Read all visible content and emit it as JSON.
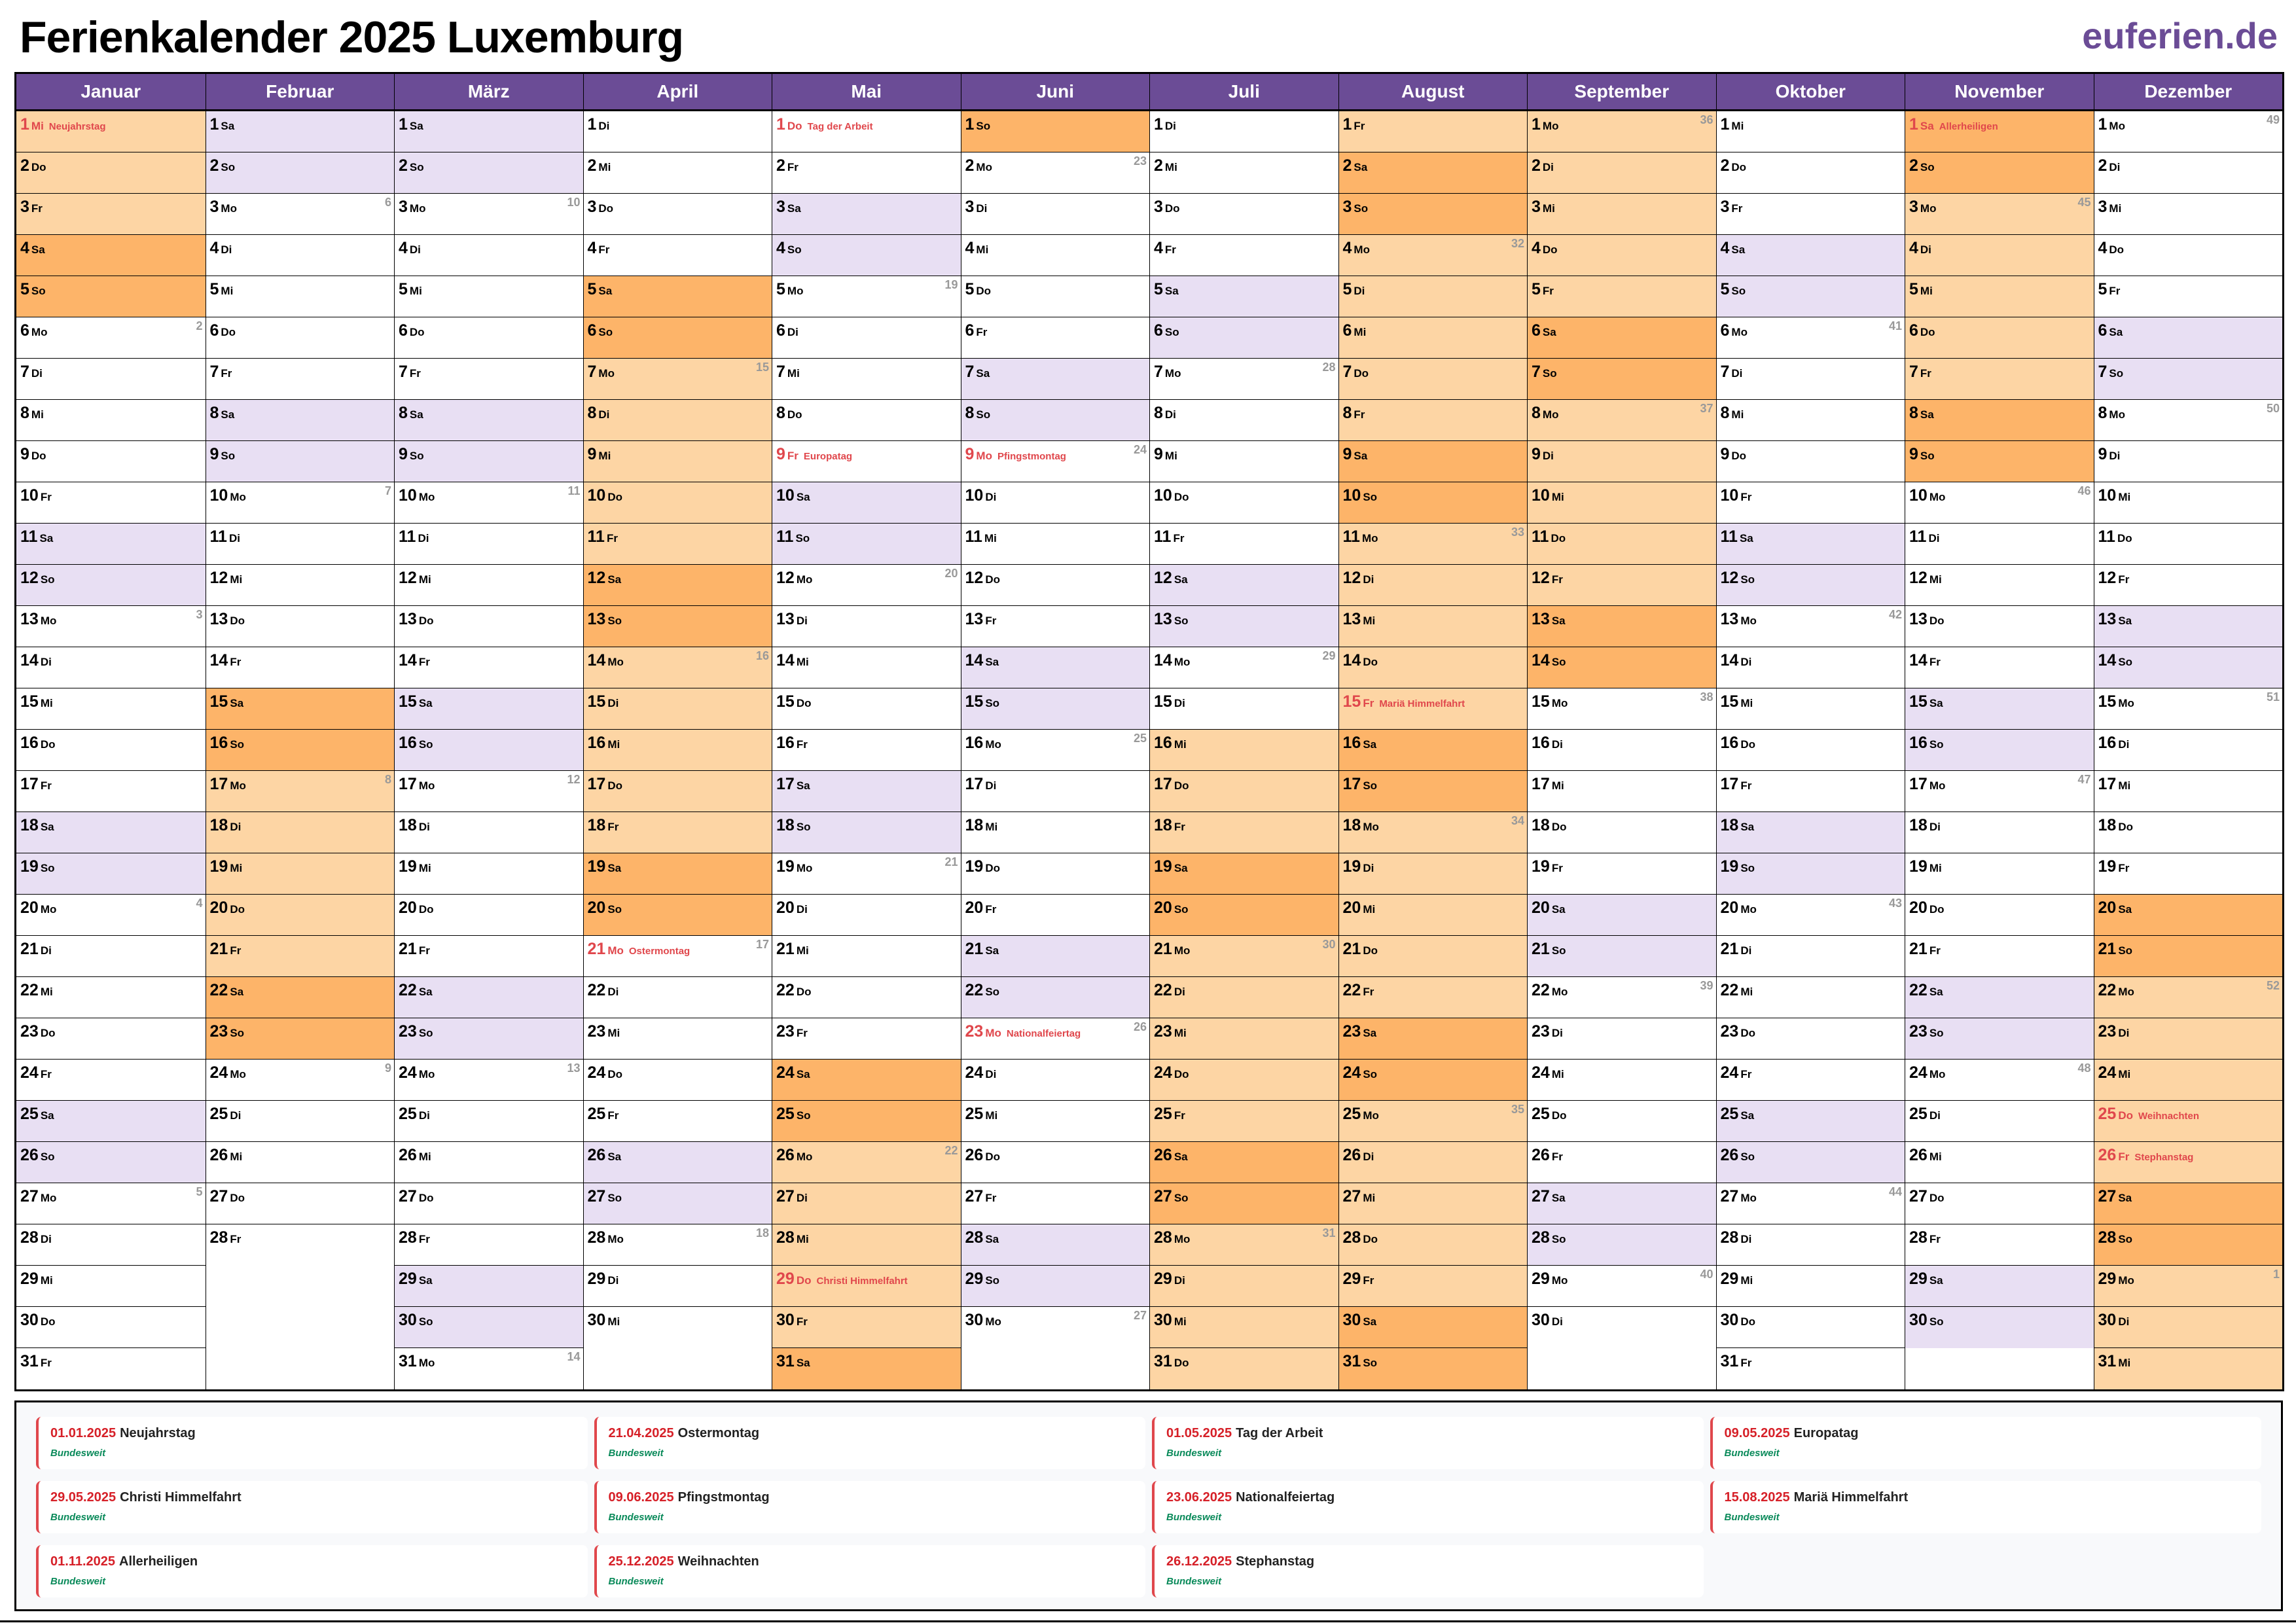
{
  "title": "Ferienkalender 2025 Luxemburg",
  "logo": "euferien.de",
  "colors": {
    "header": "#6b4c96",
    "weekend": "#e8dff3",
    "ferien": "#fdd5a4",
    "ferien_weekend": "#fdb469",
    "holiday": "#e0474c"
  },
  "months": [
    {
      "name": "Januar",
      "wd": [
        "Mi",
        "Do",
        "Fr",
        "Sa",
        "So",
        "Mo",
        "Di",
        "Mi",
        "Do",
        "Fr",
        "Sa",
        "So",
        "Mo",
        "Di",
        "Mi",
        "Do",
        "Fr",
        "Sa",
        "So",
        "Mo",
        "Di",
        "Mi",
        "Do",
        "Fr",
        "Sa",
        "So",
        "Mo",
        "Di",
        "Mi",
        "Do",
        "Fr"
      ],
      "ferien": [
        [
          1,
          5
        ]
      ],
      "kw": {
        "6": "2",
        "13": "3",
        "20": "4",
        "27": "5"
      },
      "holidays": {
        "1": "Neujahrstag"
      }
    },
    {
      "name": "Februar",
      "wd": [
        "Sa",
        "So",
        "Mo",
        "Di",
        "Mi",
        "Do",
        "Fr",
        "Sa",
        "So",
        "Mo",
        "Di",
        "Mi",
        "Do",
        "Fr",
        "Sa",
        "So",
        "Mo",
        "Di",
        "Mi",
        "Do",
        "Fr",
        "Sa",
        "So",
        "Mo",
        "Di",
        "Mi",
        "Do",
        "Fr"
      ],
      "ferien": [
        [
          15,
          23
        ]
      ],
      "kw": {
        "3": "6",
        "10": "7",
        "17": "8",
        "24": "9"
      },
      "holidays": {}
    },
    {
      "name": "März",
      "wd": [
        "Sa",
        "So",
        "Mo",
        "Di",
        "Mi",
        "Do",
        "Fr",
        "Sa",
        "So",
        "Mo",
        "Di",
        "Mi",
        "Do",
        "Fr",
        "Sa",
        "So",
        "Mo",
        "Di",
        "Mi",
        "Do",
        "Fr",
        "Sa",
        "So",
        "Mo",
        "Di",
        "Mi",
        "Do",
        "Fr",
        "Sa",
        "So",
        "Mo"
      ],
      "ferien": [],
      "kw": {
        "3": "10",
        "10": "11",
        "17": "12",
        "24": "13",
        "31": "14"
      },
      "holidays": {}
    },
    {
      "name": "April",
      "wd": [
        "Di",
        "Mi",
        "Do",
        "Fr",
        "Sa",
        "So",
        "Mo",
        "Di",
        "Mi",
        "Do",
        "Fr",
        "Sa",
        "So",
        "Mo",
        "Di",
        "Mi",
        "Do",
        "Fr",
        "Sa",
        "So",
        "Mo",
        "Di",
        "Mi",
        "Do",
        "Fr",
        "Sa",
        "So",
        "Mo",
        "Di",
        "Mi"
      ],
      "ferien": [
        [
          5,
          20
        ]
      ],
      "kw": {
        "7": "15",
        "14": "16",
        "21": "17",
        "28": "18"
      },
      "holidays": {
        "21": "Ostermontag"
      }
    },
    {
      "name": "Mai",
      "wd": [
        "Do",
        "Fr",
        "Sa",
        "So",
        "Mo",
        "Di",
        "Mi",
        "Do",
        "Fr",
        "Sa",
        "So",
        "Mo",
        "Di",
        "Mi",
        "Do",
        "Fr",
        "Sa",
        "So",
        "Mo",
        "Di",
        "Mi",
        "Do",
        "Fr",
        "Sa",
        "So",
        "Mo",
        "Di",
        "Mi",
        "Do",
        "Fr",
        "Sa"
      ],
      "ferien": [
        [
          24,
          31
        ]
      ],
      "kw": {
        "5": "19",
        "12": "20",
        "19": "21",
        "26": "22"
      },
      "holidays": {
        "1": "Tag der Arbeit",
        "9": "Europatag",
        "29": "Christi Himmelfahrt"
      }
    },
    {
      "name": "Juni",
      "wd": [
        "So",
        "Mo",
        "Di",
        "Mi",
        "Do",
        "Fr",
        "Sa",
        "So",
        "Mo",
        "Di",
        "Mi",
        "Do",
        "Fr",
        "Sa",
        "So",
        "Mo",
        "Di",
        "Mi",
        "Do",
        "Fr",
        "Sa",
        "So",
        "Mo",
        "Di",
        "Mi",
        "Do",
        "Fr",
        "Sa",
        "So",
        "Mo"
      ],
      "ferien": [
        [
          1,
          1
        ]
      ],
      "kw": {
        "2": "23",
        "9": "24",
        "16": "25",
        "23": "26",
        "30": "27"
      },
      "holidays": {
        "9": "Pfingstmontag",
        "23": "Nationalfeiertag"
      }
    },
    {
      "name": "Juli",
      "wd": [
        "Di",
        "Mi",
        "Do",
        "Fr",
        "Sa",
        "So",
        "Mo",
        "Di",
        "Mi",
        "Do",
        "Fr",
        "Sa",
        "So",
        "Mo",
        "Di",
        "Mi",
        "Do",
        "Fr",
        "Sa",
        "So",
        "Mo",
        "Di",
        "Mi",
        "Do",
        "Fr",
        "Sa",
        "So",
        "Mo",
        "Di",
        "Mi",
        "Do"
      ],
      "ferien": [
        [
          16,
          31
        ]
      ],
      "kw": {
        "7": "28",
        "14": "29",
        "21": "30",
        "28": "31"
      },
      "holidays": {}
    },
    {
      "name": "August",
      "wd": [
        "Fr",
        "Sa",
        "So",
        "Mo",
        "Di",
        "Mi",
        "Do",
        "Fr",
        "Sa",
        "So",
        "Mo",
        "Di",
        "Mi",
        "Do",
        "Fr",
        "Sa",
        "So",
        "Mo",
        "Di",
        "Mi",
        "Do",
        "Fr",
        "Sa",
        "So",
        "Mo",
        "Di",
        "Mi",
        "Do",
        "Fr",
        "Sa",
        "So"
      ],
      "ferien": [
        [
          1,
          31
        ]
      ],
      "kw": {
        "4": "32",
        "11": "33",
        "18": "34",
        "25": "35"
      },
      "holidays": {
        "15": "Mariä Himmelfahrt"
      }
    },
    {
      "name": "September",
      "wd": [
        "Mo",
        "Di",
        "Mi",
        "Do",
        "Fr",
        "Sa",
        "So",
        "Mo",
        "Di",
        "Mi",
        "Do",
        "Fr",
        "Sa",
        "So",
        "Mo",
        "Di",
        "Mi",
        "Do",
        "Fr",
        "Sa",
        "So",
        "Mo",
        "Di",
        "Mi",
        "Do",
        "Fr",
        "Sa",
        "So",
        "Mo",
        "Di"
      ],
      "ferien": [
        [
          1,
          14
        ]
      ],
      "kw": {
        "1": "36",
        "8": "37",
        "15": "38",
        "22": "39",
        "29": "40"
      },
      "holidays": {}
    },
    {
      "name": "Oktober",
      "wd": [
        "Mi",
        "Do",
        "Fr",
        "Sa",
        "So",
        "Mo",
        "Di",
        "Mi",
        "Do",
        "Fr",
        "Sa",
        "So",
        "Mo",
        "Di",
        "Mi",
        "Do",
        "Fr",
        "Sa",
        "So",
        "Mo",
        "Di",
        "Mi",
        "Do",
        "Fr",
        "Sa",
        "So",
        "Mo",
        "Di",
        "Mi",
        "Do",
        "Fr"
      ],
      "ferien": [],
      "kw": {
        "6": "41",
        "13": "42",
        "20": "43",
        "27": "44"
      },
      "holidays": {}
    },
    {
      "name": "November",
      "wd": [
        "Sa",
        "So",
        "Mo",
        "Di",
        "Mi",
        "Do",
        "Fr",
        "Sa",
        "So",
        "Mo",
        "Di",
        "Mi",
        "Do",
        "Fr",
        "Sa",
        "So",
        "Mo",
        "Di",
        "Mi",
        "Do",
        "Fr",
        "Sa",
        "So",
        "Mo",
        "Di",
        "Mi",
        "Do",
        "Fr",
        "Sa",
        "So"
      ],
      "ferien": [
        [
          1,
          9
        ]
      ],
      "kw": {
        "3": "45",
        "10": "46",
        "17": "47",
        "24": "48"
      },
      "holidays": {
        "1": "Allerheiligen"
      }
    },
    {
      "name": "Dezember",
      "wd": [
        "Mo",
        "Di",
        "Mi",
        "Do",
        "Fr",
        "Sa",
        "So",
        "Mo",
        "Di",
        "Mi",
        "Do",
        "Fr",
        "Sa",
        "So",
        "Mo",
        "Di",
        "Mi",
        "Do",
        "Fr",
        "Sa",
        "So",
        "Mo",
        "Di",
        "Mi",
        "Do",
        "Fr",
        "Sa",
        "So",
        "Mo",
        "Di",
        "Mi"
      ],
      "ferien": [
        [
          20,
          31
        ]
      ],
      "kw": {
        "1": "49",
        "8": "50",
        "15": "51",
        "22": "52",
        "29": "1"
      },
      "holidays": {
        "25": "Weihnachten",
        "26": "Stephanstag"
      }
    }
  ],
  "legend": [
    {
      "date": "01.01.2025",
      "name": "Neujahrstag",
      "region": "Bundesweit"
    },
    {
      "date": "21.04.2025",
      "name": "Ostermontag",
      "region": "Bundesweit"
    },
    {
      "date": "01.05.2025",
      "name": "Tag der Arbeit",
      "region": "Bundesweit"
    },
    {
      "date": "09.05.2025",
      "name": "Europatag",
      "region": "Bundesweit"
    },
    {
      "date": "29.05.2025",
      "name": "Christi Himmelfahrt",
      "region": "Bundesweit"
    },
    {
      "date": "09.06.2025",
      "name": "Pfingstmontag",
      "region": "Bundesweit"
    },
    {
      "date": "23.06.2025",
      "name": "Nationalfeiertag",
      "region": "Bundesweit"
    },
    {
      "date": "15.08.2025",
      "name": "Mariä Himmelfahrt",
      "region": "Bundesweit"
    },
    {
      "date": "01.11.2025",
      "name": "Allerheiligen",
      "region": "Bundesweit"
    },
    {
      "date": "25.12.2025",
      "name": "Weihnachten",
      "region": "Bundesweit"
    },
    {
      "date": "26.12.2025",
      "name": "Stephanstag",
      "region": "Bundesweit"
    }
  ]
}
